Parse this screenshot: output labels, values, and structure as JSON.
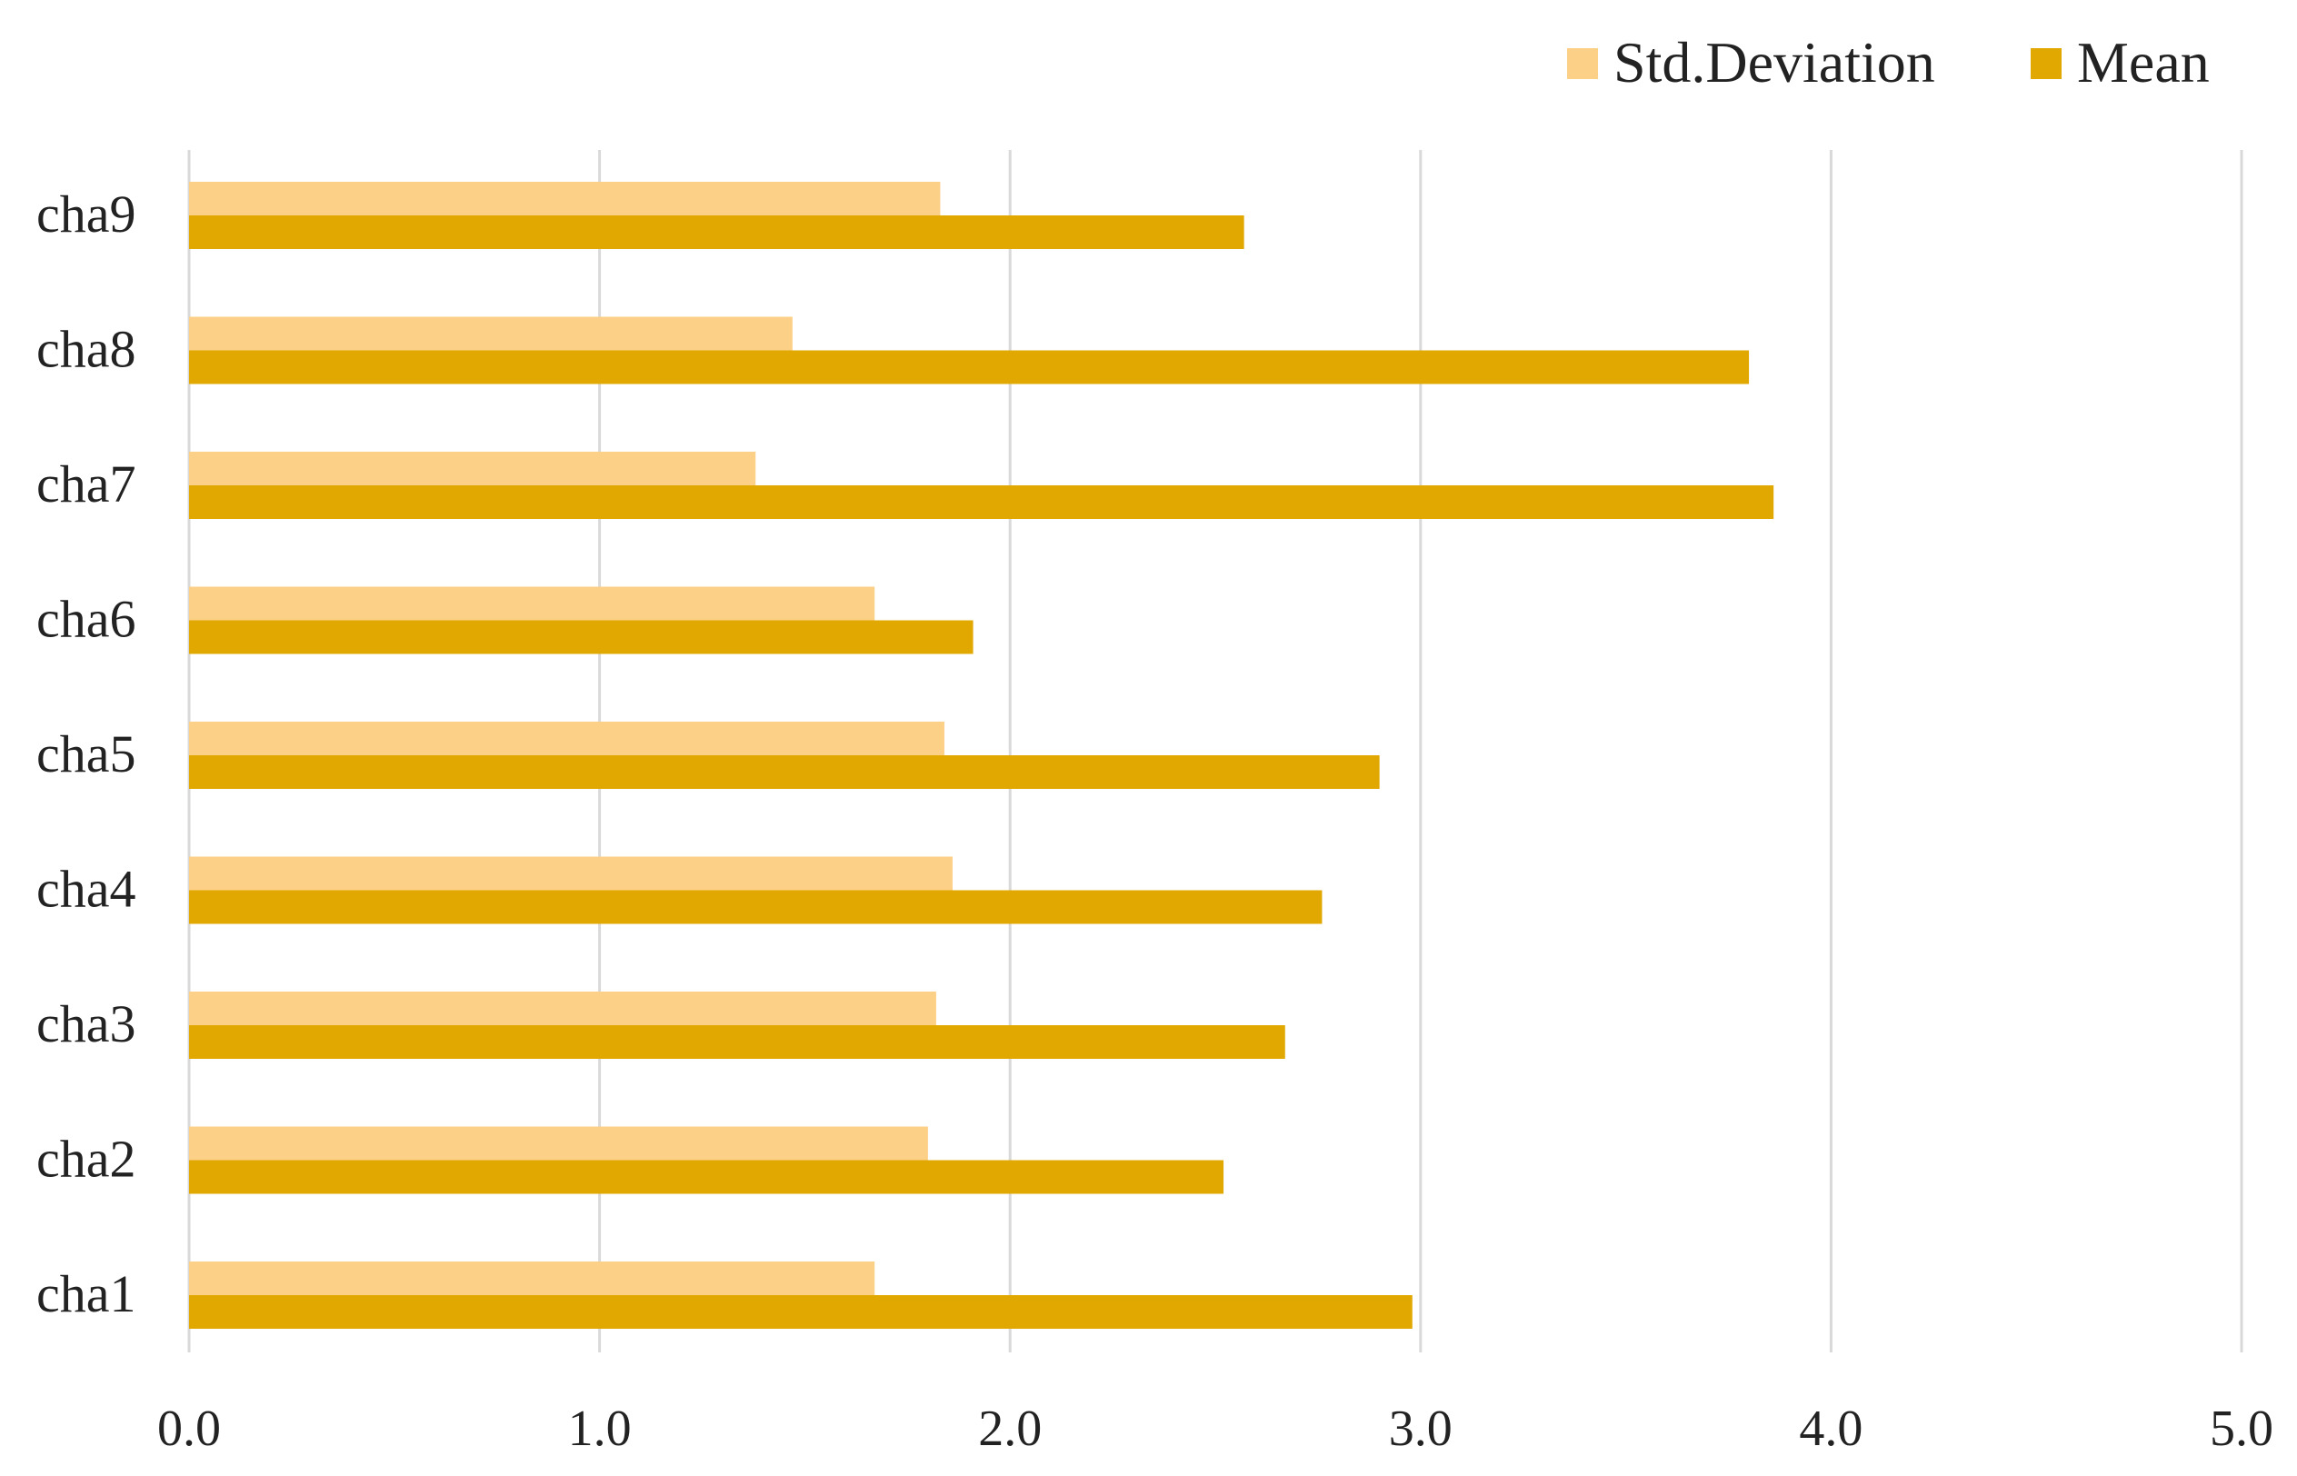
{
  "chart_data": {
    "type": "bar",
    "orientation": "horizontal",
    "title": "",
    "xlabel": "",
    "ylabel": "",
    "xlim": [
      0,
      5
    ],
    "x_ticks": [
      0,
      1,
      2,
      3,
      4,
      5
    ],
    "x_tick_labels": [
      "0.0",
      "1.0",
      "2.0",
      "3.0",
      "4.0",
      "5.0"
    ],
    "categories": [
      "cha9",
      "cha8",
      "cha7",
      "cha6",
      "cha5",
      "cha4",
      "cha3",
      "cha2",
      "cha1"
    ],
    "series": [
      {
        "name": "Std.Deviation",
        "color": "#FDD088",
        "values": [
          1.83,
          1.47,
          1.38,
          1.67,
          1.84,
          1.86,
          1.82,
          1.8,
          1.67
        ]
      },
      {
        "name": "Mean",
        "color": "#E0A800",
        "values": [
          2.57,
          3.8,
          3.86,
          1.91,
          2.9,
          2.76,
          2.67,
          2.52,
          2.98
        ]
      }
    ],
    "legend": {
      "position": "top-right",
      "entries": [
        "Std.Deviation",
        "Mean"
      ]
    },
    "grid": true,
    "gridline_color": "#D9D9D9"
  }
}
